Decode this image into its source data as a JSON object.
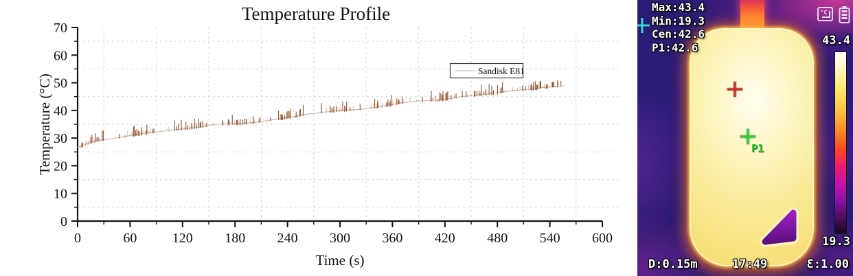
{
  "chart_data": {
    "type": "line",
    "title": "Temperature Profile",
    "xlabel": "Time (s)",
    "ylabel": "Temperature (°C)",
    "xlim": [
      0,
      600
    ],
    "ylim": [
      0,
      70
    ],
    "x_major_tick_step": 60,
    "x_minor_tick_step": 30,
    "y_major_tick_step": 10,
    "y_minor_tick_step": 5,
    "x_tick_labels": [
      "0",
      "60",
      "120",
      "180",
      "240",
      "300",
      "360",
      "420",
      "480",
      "540",
      "600"
    ],
    "y_tick_labels": [
      "0",
      "10",
      "20",
      "30",
      "40",
      "50",
      "60",
      "70"
    ],
    "grid": "dashed at minor ticks only",
    "legend_position": "upper right inside",
    "series": [
      {
        "name": "Sandisk E81",
        "line_color": "#c6b7ab",
        "noise_color": "#8d4b28",
        "noise_amplitude_c": 1.0,
        "points": [
          [
            0,
            26.6
          ],
          [
            4,
            27.1
          ],
          [
            8,
            27.6
          ],
          [
            12,
            28.1
          ],
          [
            18,
            28.7
          ],
          [
            24,
            29.1
          ],
          [
            30,
            29.4
          ],
          [
            38,
            29.7
          ],
          [
            46,
            30.1
          ],
          [
            55,
            30.6
          ],
          [
            62,
            31.0
          ],
          [
            70,
            31.4
          ],
          [
            78,
            31.8
          ],
          [
            86,
            32.1
          ],
          [
            95,
            32.4
          ],
          [
            105,
            32.8
          ],
          [
            112,
            33.1
          ],
          [
            120,
            33.3
          ],
          [
            128,
            33.6
          ],
          [
            136,
            33.9
          ],
          [
            144,
            34.3
          ],
          [
            152,
            34.7
          ],
          [
            160,
            35.0
          ],
          [
            170,
            35.1
          ],
          [
            182,
            35.2
          ],
          [
            192,
            35.4
          ],
          [
            200,
            35.6
          ],
          [
            208,
            35.9
          ],
          [
            216,
            36.3
          ],
          [
            224,
            36.7
          ],
          [
            232,
            37.0
          ],
          [
            240,
            37.4
          ],
          [
            248,
            37.8
          ],
          [
            256,
            38.3
          ],
          [
            264,
            38.7
          ],
          [
            272,
            39.0
          ],
          [
            280,
            39.3
          ],
          [
            288,
            39.6
          ],
          [
            296,
            39.9
          ],
          [
            304,
            40.1
          ],
          [
            314,
            40.2
          ],
          [
            324,
            40.4
          ],
          [
            332,
            40.7
          ],
          [
            340,
            41.1
          ],
          [
            348,
            41.5
          ],
          [
            356,
            42.0
          ],
          [
            364,
            42.4
          ],
          [
            372,
            42.8
          ],
          [
            380,
            43.1
          ],
          [
            388,
            43.4
          ],
          [
            398,
            43.5
          ],
          [
            408,
            43.7
          ],
          [
            416,
            43.9
          ],
          [
            424,
            44.2
          ],
          [
            432,
            44.6
          ],
          [
            440,
            45.0
          ],
          [
            448,
            45.3
          ],
          [
            458,
            45.6
          ],
          [
            466,
            45.9
          ],
          [
            474,
            46.2
          ],
          [
            482,
            46.5
          ],
          [
            490,
            46.9
          ],
          [
            498,
            47.2
          ],
          [
            506,
            47.4
          ],
          [
            514,
            47.6
          ],
          [
            522,
            47.9
          ],
          [
            530,
            48.2
          ],
          [
            538,
            48.4
          ],
          [
            546,
            48.7
          ],
          [
            552,
            48.8
          ],
          [
            557,
            48.9
          ]
        ]
      }
    ]
  },
  "thermal": {
    "readings": [
      "Max:43.4",
      "Min:19.3",
      "Cen:42.6",
      "P1:42.6"
    ],
    "scale": {
      "high": "43.4",
      "low": "19.3"
    },
    "marker_p1_label": "P1",
    "footer": {
      "distance": "D:0.15m",
      "time": "17:49",
      "emissivity": "Ɛ:1.00"
    },
    "icons": [
      "temperature-unit-icon",
      "battery-icon"
    ],
    "colors": {
      "background_indigo": "#2b1b74",
      "hot_body_yellow": "#f9e993",
      "cable_hot": "#f0543a",
      "hole_purple": "#8a16ae",
      "crosshair_center": "#d42a1e",
      "crosshair_p1": "#25d52c",
      "crosshair_left": "#39d8e8",
      "overlay_text": "#ffffff",
      "colorbar_stops": [
        "#ffffff",
        "#fff7c8",
        "#ffe96e",
        "#ffc43e",
        "#ff8c26",
        "#ff4d1c",
        "#ef186e",
        "#c313a8",
        "#8a12a8",
        "#4a0d58",
        "#180820"
      ]
    }
  }
}
